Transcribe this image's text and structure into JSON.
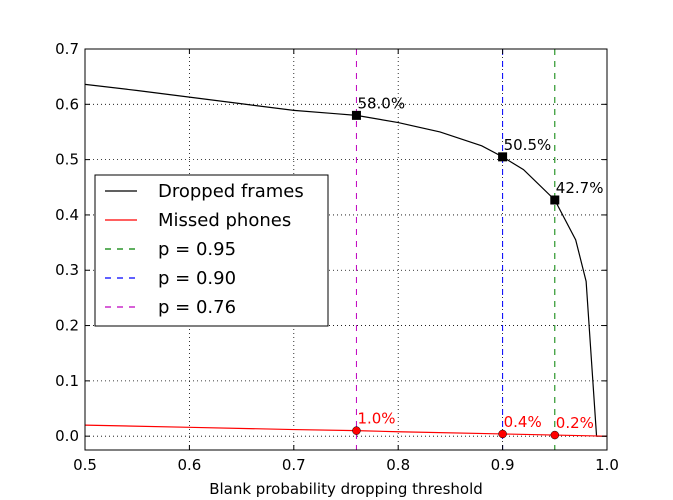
{
  "chart_data": {
    "type": "line",
    "title": "",
    "xlabel": "Blank probability dropping threshold",
    "ylabel": "",
    "xlim": [
      0.5,
      1.0
    ],
    "ylim": [
      -0.025,
      0.7
    ],
    "xticks": [
      "0.5",
      "0.6",
      "0.7",
      "0.8",
      "0.9",
      "1.0"
    ],
    "yticks": [
      "0.0",
      "0.1",
      "0.2",
      "0.3",
      "0.4",
      "0.5",
      "0.6",
      "0.7"
    ],
    "grid": true,
    "legend_position": "center-left",
    "series": [
      {
        "name": "Dropped frames",
        "color": "#000000",
        "x": [
          0.5,
          0.55,
          0.6,
          0.65,
          0.7,
          0.74,
          0.76,
          0.8,
          0.84,
          0.88,
          0.9,
          0.92,
          0.95,
          0.97,
          0.98,
          0.985,
          0.99,
          1.0
        ],
        "y": [
          0.636,
          0.625,
          0.613,
          0.601,
          0.589,
          0.583,
          0.58,
          0.567,
          0.55,
          0.525,
          0.505,
          0.482,
          0.427,
          0.355,
          0.28,
          0.14,
          0.0,
          0.0
        ]
      },
      {
        "name": "Missed phones",
        "color": "#ff0000",
        "x": [
          0.5,
          0.6,
          0.7,
          0.76,
          0.8,
          0.9,
          0.95,
          1.0
        ],
        "y": [
          0.02,
          0.016,
          0.012,
          0.01,
          0.008,
          0.004,
          0.002,
          0.0
        ]
      },
      {
        "name": "p = 0.95",
        "color": "#008000",
        "style": "dashed",
        "vline": 0.95
      },
      {
        "name": "p = 0.90",
        "color": "#0000ff",
        "style": "dashed",
        "vline": 0.9
      },
      {
        "name": "p = 0.76",
        "color": "#bf00bf",
        "style": "dashed",
        "vline": 0.76
      }
    ],
    "markers": [
      {
        "series": "Dropped frames",
        "x": 0.76,
        "y": 0.58,
        "shape": "square",
        "color": "#000000",
        "label": "58.0%"
      },
      {
        "series": "Dropped frames",
        "x": 0.9,
        "y": 0.505,
        "shape": "square",
        "color": "#000000",
        "label": "50.5%"
      },
      {
        "series": "Dropped frames",
        "x": 0.95,
        "y": 0.427,
        "shape": "square",
        "color": "#000000",
        "label": "42.7%"
      },
      {
        "series": "Missed phones",
        "x": 0.76,
        "y": 0.01,
        "shape": "circle",
        "color": "#ff0000",
        "label": "1.0%"
      },
      {
        "series": "Missed phones",
        "x": 0.9,
        "y": 0.004,
        "shape": "circle",
        "color": "#ff0000",
        "label": "0.4%"
      },
      {
        "series": "Missed phones",
        "x": 0.95,
        "y": 0.002,
        "shape": "circle",
        "color": "#ff0000",
        "label": "0.2%"
      }
    ]
  }
}
